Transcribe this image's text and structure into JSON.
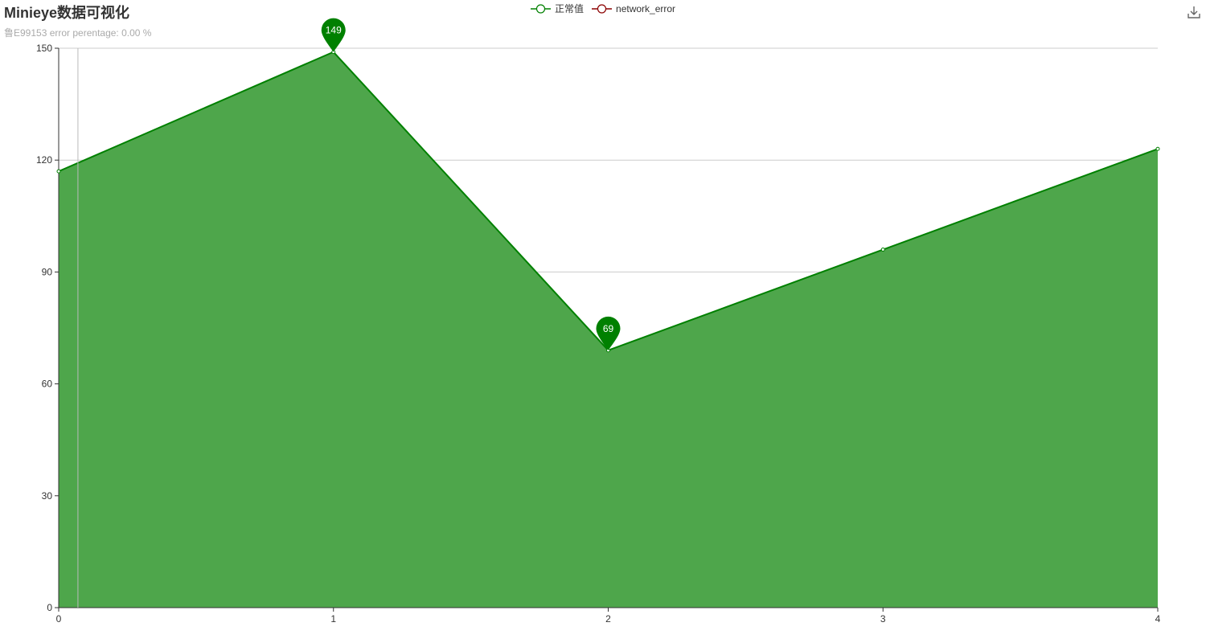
{
  "toolbox": {
    "download_icon": "download-icon"
  },
  "chart_data": {
    "type": "area",
    "title": "Minieye数据可视化",
    "subtitle": "鲁E99153 error perentage: 0.00 %",
    "legend": {
      "position": "top-center",
      "items": [
        {
          "name": "正常值",
          "color": "#008000"
        },
        {
          "name": "network_error",
          "color": "#8b0000"
        }
      ]
    },
    "x": [
      0,
      1,
      2,
      3,
      4
    ],
    "xlim": [
      0,
      4
    ],
    "ylim": [
      0,
      150
    ],
    "yticks": [
      0,
      30,
      60,
      90,
      120,
      150
    ],
    "grid": true,
    "series": [
      {
        "name": "正常值",
        "values": [
          117,
          149,
          69,
          96,
          123
        ],
        "line_color": "#008000",
        "fill_color": "#4ea64b"
      }
    ],
    "mark_points": [
      {
        "x": 1,
        "y": 149,
        "label": "149"
      },
      {
        "x": 2,
        "y": 69,
        "label": "69"
      }
    ],
    "cursor_x": 0.07
  }
}
